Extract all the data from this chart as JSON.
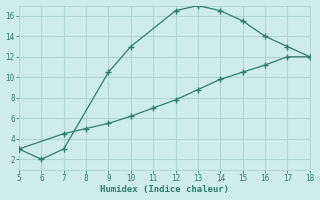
{
  "xlabel": "Humidex (Indice chaleur)",
  "line1_x": [
    5,
    6,
    7,
    9,
    10,
    12,
    13,
    14,
    15,
    16,
    17,
    18
  ],
  "line1_y": [
    3.0,
    2.0,
    3.0,
    10.5,
    13.0,
    16.5,
    17.0,
    16.5,
    15.5,
    14.0,
    13.0,
    12.0
  ],
  "line2_x": [
    5,
    7,
    8,
    9,
    10,
    11,
    12,
    13,
    14,
    15,
    16,
    17,
    18
  ],
  "line2_y": [
    3.0,
    4.5,
    5.0,
    5.5,
    6.2,
    7.0,
    7.8,
    8.8,
    9.8,
    10.5,
    11.2,
    12.0,
    12.0
  ],
  "line_color": "#2e7d6e",
  "bg_color": "#ceecea",
  "grid_color": "#b0d4d0",
  "xlim": [
    5,
    18
  ],
  "ylim": [
    1,
    17
  ],
  "xticks": [
    5,
    6,
    7,
    8,
    9,
    10,
    11,
    12,
    13,
    14,
    15,
    16,
    17,
    18
  ],
  "yticks": [
    2,
    4,
    6,
    8,
    10,
    12,
    14,
    16
  ]
}
